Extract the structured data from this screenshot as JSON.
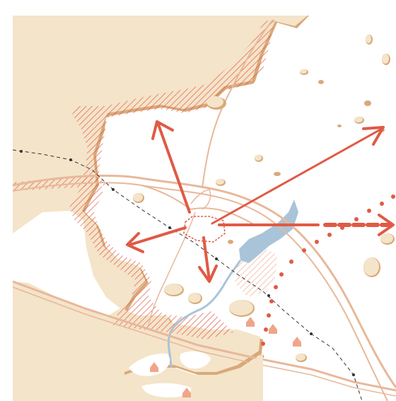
{
  "map": {
    "colors": {
      "background": "#ffffff",
      "land": "#f4e4c9",
      "land_shadow": "#d9a97a",
      "hatch": "#e05a45",
      "arrow": "#e05a45",
      "water": "#a9c4d8",
      "road": "#e8b89a",
      "rail": "#333333",
      "dots": "#e05a45",
      "houses": "#f0a58a"
    },
    "features": [
      "coastline-land",
      "hatched-development-zone",
      "directional-arrows",
      "river",
      "lake",
      "ring-road",
      "railway",
      "dotted-boundary",
      "islands",
      "houses"
    ],
    "arrow_directions": [
      "north-west",
      "north-east",
      "east",
      "west",
      "south"
    ]
  }
}
